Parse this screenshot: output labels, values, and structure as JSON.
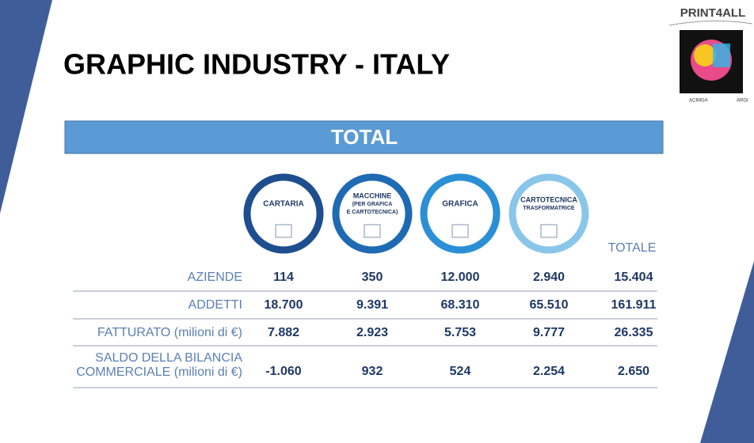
{
  "header": {
    "title": "GRAPHIC INDUSTRY - ITALY",
    "logo": "PRINT4ALL",
    "partners": [
      "ACIMGA",
      "ARGI"
    ]
  },
  "banner": "TOTAL",
  "columns": [
    {
      "lines": [
        "CARTARIA"
      ]
    },
    {
      "lines": [
        "MACCHINE",
        "(PER GRAFICA",
        "E CARTOTECNICA)"
      ]
    },
    {
      "lines": [
        "GRAFICA"
      ]
    },
    {
      "lines": [
        "CARTOTECNICA",
        "TRASFORMATRICE"
      ]
    },
    {
      "lines": [
        "TOTALE"
      ]
    }
  ],
  "table": {
    "rows": [
      {
        "label": [
          "AZIENDE"
        ],
        "cells": [
          "114",
          "350",
          "12.000",
          "2.940",
          "15.404"
        ]
      },
      {
        "label": [
          "ADDETTI"
        ],
        "cells": [
          "18.700",
          "9.391",
          "68.310",
          "65.510",
          "161.911"
        ]
      },
      {
        "label": [
          "FATTURATO (milioni di €)"
        ],
        "cells": [
          "7.882",
          "2.923",
          "5.753",
          "9.777",
          "26.335"
        ]
      },
      {
        "label": [
          "SALDO DELLA BILANCIA",
          "COMMERCIALE (milioni di €)"
        ],
        "cells": [
          "-1.060",
          "932",
          "524",
          "2.254",
          "2.650"
        ]
      }
    ]
  }
}
